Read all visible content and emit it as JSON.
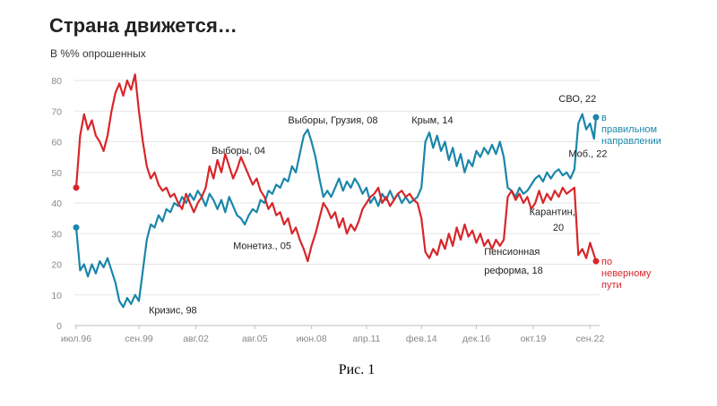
{
  "chart_data": {
    "type": "line",
    "title": "Страна движется…",
    "ylabel": "В %% опрошенных",
    "ylim": [
      0,
      80
    ],
    "yticks": [
      "0",
      "10",
      "20",
      "30",
      "40",
      "50",
      "60",
      "70",
      "80"
    ],
    "xlim": [
      1996.5,
      2023.0
    ],
    "xticks": [
      {
        "x": 1996.5,
        "label": "июл.96"
      },
      {
        "x": 1999.7,
        "label": "сен.99"
      },
      {
        "x": 2002.6,
        "label": "авг.02"
      },
      {
        "x": 2005.6,
        "label": "авг.05"
      },
      {
        "x": 2008.5,
        "label": "июн.08"
      },
      {
        "x": 2011.3,
        "label": "апр.11"
      },
      {
        "x": 2014.1,
        "label": "фев.14"
      },
      {
        "x": 2016.9,
        "label": "дек.16"
      },
      {
        "x": 2019.8,
        "label": "окт.19"
      },
      {
        "x": 2022.7,
        "label": "сен.22"
      }
    ],
    "series": [
      {
        "name": "в правильном направлении",
        "color": "#1a86aa",
        "points": [
          [
            1996.5,
            32
          ],
          [
            1996.7,
            18
          ],
          [
            1996.9,
            20
          ],
          [
            1997.1,
            16
          ],
          [
            1997.3,
            20
          ],
          [
            1997.5,
            17
          ],
          [
            1997.7,
            21
          ],
          [
            1997.9,
            19
          ],
          [
            1998.1,
            22
          ],
          [
            1998.3,
            18
          ],
          [
            1998.5,
            14
          ],
          [
            1998.7,
            8
          ],
          [
            1998.9,
            6
          ],
          [
            1999.1,
            9
          ],
          [
            1999.3,
            7
          ],
          [
            1999.5,
            10
          ],
          [
            1999.7,
            8
          ],
          [
            1999.9,
            18
          ],
          [
            2000.1,
            28
          ],
          [
            2000.3,
            33
          ],
          [
            2000.5,
            32
          ],
          [
            2000.7,
            36
          ],
          [
            2000.9,
            34
          ],
          [
            2001.1,
            38
          ],
          [
            2001.3,
            37
          ],
          [
            2001.5,
            40
          ],
          [
            2001.7,
            39
          ],
          [
            2001.9,
            42
          ],
          [
            2002.1,
            40
          ],
          [
            2002.3,
            43
          ],
          [
            2002.5,
            41
          ],
          [
            2002.7,
            44
          ],
          [
            2002.9,
            42
          ],
          [
            2003.1,
            39
          ],
          [
            2003.3,
            43
          ],
          [
            2003.5,
            41
          ],
          [
            2003.7,
            38
          ],
          [
            2003.9,
            41
          ],
          [
            2004.1,
            37
          ],
          [
            2004.3,
            42
          ],
          [
            2004.5,
            39
          ],
          [
            2004.7,
            36
          ],
          [
            2004.9,
            35
          ],
          [
            2005.1,
            33
          ],
          [
            2005.3,
            36
          ],
          [
            2005.5,
            38
          ],
          [
            2005.7,
            37
          ],
          [
            2005.9,
            41
          ],
          [
            2006.1,
            40
          ],
          [
            2006.3,
            44
          ],
          [
            2006.5,
            43
          ],
          [
            2006.7,
            46
          ],
          [
            2006.9,
            45
          ],
          [
            2007.1,
            48
          ],
          [
            2007.3,
            47
          ],
          [
            2007.5,
            52
          ],
          [
            2007.7,
            50
          ],
          [
            2007.9,
            56
          ],
          [
            2008.1,
            62
          ],
          [
            2008.3,
            64
          ],
          [
            2008.5,
            60
          ],
          [
            2008.7,
            55
          ],
          [
            2008.9,
            48
          ],
          [
            2009.1,
            42
          ],
          [
            2009.3,
            44
          ],
          [
            2009.5,
            42
          ],
          [
            2009.7,
            45
          ],
          [
            2009.9,
            48
          ],
          [
            2010.1,
            44
          ],
          [
            2010.3,
            47
          ],
          [
            2010.5,
            45
          ],
          [
            2010.7,
            48
          ],
          [
            2010.9,
            46
          ],
          [
            2011.1,
            43
          ],
          [
            2011.3,
            45
          ],
          [
            2011.5,
            40
          ],
          [
            2011.7,
            42
          ],
          [
            2011.9,
            39
          ],
          [
            2012.1,
            43
          ],
          [
            2012.3,
            41
          ],
          [
            2012.5,
            44
          ],
          [
            2012.7,
            41
          ],
          [
            2012.9,
            43
          ],
          [
            2013.1,
            40
          ],
          [
            2013.3,
            42
          ],
          [
            2013.5,
            40
          ],
          [
            2013.7,
            41
          ],
          [
            2013.9,
            42
          ],
          [
            2014.1,
            45
          ],
          [
            2014.3,
            60
          ],
          [
            2014.5,
            63
          ],
          [
            2014.7,
            58
          ],
          [
            2014.9,
            62
          ],
          [
            2015.1,
            57
          ],
          [
            2015.3,
            60
          ],
          [
            2015.5,
            54
          ],
          [
            2015.7,
            58
          ],
          [
            2015.9,
            52
          ],
          [
            2016.1,
            56
          ],
          [
            2016.3,
            50
          ],
          [
            2016.5,
            54
          ],
          [
            2016.7,
            52
          ],
          [
            2016.9,
            57
          ],
          [
            2017.1,
            55
          ],
          [
            2017.3,
            58
          ],
          [
            2017.5,
            56
          ],
          [
            2017.7,
            59
          ],
          [
            2017.9,
            56
          ],
          [
            2018.1,
            60
          ],
          [
            2018.3,
            55
          ],
          [
            2018.5,
            45
          ],
          [
            2018.7,
            44
          ],
          [
            2018.9,
            42
          ],
          [
            2019.1,
            45
          ],
          [
            2019.3,
            43
          ],
          [
            2019.5,
            44
          ],
          [
            2019.7,
            46
          ],
          [
            2019.9,
            48
          ],
          [
            2020.1,
            49
          ],
          [
            2020.3,
            47
          ],
          [
            2020.5,
            50
          ],
          [
            2020.7,
            48
          ],
          [
            2020.9,
            50
          ],
          [
            2021.1,
            51
          ],
          [
            2021.3,
            49
          ],
          [
            2021.5,
            50
          ],
          [
            2021.7,
            48
          ],
          [
            2021.9,
            51
          ],
          [
            2022.1,
            66
          ],
          [
            2022.3,
            69
          ],
          [
            2022.5,
            64
          ],
          [
            2022.7,
            66
          ],
          [
            2022.9,
            61
          ],
          [
            2023.0,
            68
          ]
        ]
      },
      {
        "name": "по неверному пути",
        "color": "#d8262a",
        "points": [
          [
            1996.5,
            45
          ],
          [
            1996.7,
            62
          ],
          [
            1996.9,
            69
          ],
          [
            1997.1,
            64
          ],
          [
            1997.3,
            67
          ],
          [
            1997.5,
            62
          ],
          [
            1997.7,
            60
          ],
          [
            1997.9,
            57
          ],
          [
            1998.1,
            62
          ],
          [
            1998.3,
            70
          ],
          [
            1998.5,
            76
          ],
          [
            1998.7,
            79
          ],
          [
            1998.9,
            75
          ],
          [
            1999.1,
            80
          ],
          [
            1999.3,
            77
          ],
          [
            1999.5,
            82
          ],
          [
            1999.7,
            70
          ],
          [
            1999.9,
            60
          ],
          [
            2000.1,
            52
          ],
          [
            2000.3,
            48
          ],
          [
            2000.5,
            50
          ],
          [
            2000.7,
            46
          ],
          [
            2000.9,
            44
          ],
          [
            2001.1,
            45
          ],
          [
            2001.3,
            42
          ],
          [
            2001.5,
            43
          ],
          [
            2001.7,
            40
          ],
          [
            2001.9,
            38
          ],
          [
            2002.1,
            43
          ],
          [
            2002.3,
            40
          ],
          [
            2002.5,
            37
          ],
          [
            2002.7,
            40
          ],
          [
            2002.9,
            42
          ],
          [
            2003.1,
            45
          ],
          [
            2003.3,
            52
          ],
          [
            2003.5,
            48
          ],
          [
            2003.7,
            54
          ],
          [
            2003.9,
            50
          ],
          [
            2004.1,
            56
          ],
          [
            2004.3,
            52
          ],
          [
            2004.5,
            48
          ],
          [
            2004.7,
            51
          ],
          [
            2004.9,
            55
          ],
          [
            2005.1,
            52
          ],
          [
            2005.3,
            49
          ],
          [
            2005.5,
            46
          ],
          [
            2005.7,
            48
          ],
          [
            2005.9,
            44
          ],
          [
            2006.1,
            42
          ],
          [
            2006.3,
            38
          ],
          [
            2006.5,
            40
          ],
          [
            2006.7,
            36
          ],
          [
            2006.9,
            37
          ],
          [
            2007.1,
            33
          ],
          [
            2007.3,
            35
          ],
          [
            2007.5,
            30
          ],
          [
            2007.7,
            32
          ],
          [
            2007.9,
            28
          ],
          [
            2008.1,
            25
          ],
          [
            2008.3,
            21
          ],
          [
            2008.5,
            26
          ],
          [
            2008.7,
            30
          ],
          [
            2008.9,
            35
          ],
          [
            2009.1,
            40
          ],
          [
            2009.3,
            38
          ],
          [
            2009.5,
            35
          ],
          [
            2009.7,
            37
          ],
          [
            2009.9,
            32
          ],
          [
            2010.1,
            35
          ],
          [
            2010.3,
            30
          ],
          [
            2010.5,
            33
          ],
          [
            2010.7,
            31
          ],
          [
            2010.9,
            34
          ],
          [
            2011.1,
            38
          ],
          [
            2011.3,
            40
          ],
          [
            2011.5,
            42
          ],
          [
            2011.7,
            43
          ],
          [
            2011.9,
            45
          ],
          [
            2012.1,
            40
          ],
          [
            2012.3,
            42
          ],
          [
            2012.5,
            39
          ],
          [
            2012.7,
            41
          ],
          [
            2012.9,
            43
          ],
          [
            2013.1,
            44
          ],
          [
            2013.3,
            42
          ],
          [
            2013.5,
            43
          ],
          [
            2013.7,
            41
          ],
          [
            2013.9,
            40
          ],
          [
            2014.1,
            35
          ],
          [
            2014.3,
            24
          ],
          [
            2014.5,
            22
          ],
          [
            2014.7,
            25
          ],
          [
            2014.9,
            23
          ],
          [
            2015.1,
            28
          ],
          [
            2015.3,
            25
          ],
          [
            2015.5,
            30
          ],
          [
            2015.7,
            26
          ],
          [
            2015.9,
            32
          ],
          [
            2016.1,
            28
          ],
          [
            2016.3,
            33
          ],
          [
            2016.5,
            29
          ],
          [
            2016.7,
            31
          ],
          [
            2016.9,
            27
          ],
          [
            2017.1,
            30
          ],
          [
            2017.3,
            26
          ],
          [
            2017.5,
            28
          ],
          [
            2017.7,
            25
          ],
          [
            2017.9,
            28
          ],
          [
            2018.1,
            26
          ],
          [
            2018.3,
            28
          ],
          [
            2018.5,
            42
          ],
          [
            2018.7,
            44
          ],
          [
            2018.9,
            41
          ],
          [
            2019.1,
            43
          ],
          [
            2019.3,
            40
          ],
          [
            2019.5,
            42
          ],
          [
            2019.7,
            38
          ],
          [
            2019.9,
            40
          ],
          [
            2020.1,
            44
          ],
          [
            2020.3,
            40
          ],
          [
            2020.5,
            43
          ],
          [
            2020.7,
            41
          ],
          [
            2020.9,
            44
          ],
          [
            2021.1,
            42
          ],
          [
            2021.3,
            45
          ],
          [
            2021.5,
            43
          ],
          [
            2021.7,
            44
          ],
          [
            2021.9,
            45
          ],
          [
            2022.1,
            23
          ],
          [
            2022.3,
            25
          ],
          [
            2022.5,
            22
          ],
          [
            2022.7,
            27
          ],
          [
            2022.9,
            23
          ],
          [
            2023.0,
            21
          ]
        ]
      }
    ],
    "annotations": [
      {
        "text": "Кризис, 98",
        "x": 2000.2,
        "y": 4
      },
      {
        "text": "Выборы, 04",
        "x": 2003.4,
        "y": 56
      },
      {
        "text": "Монетиз., 05",
        "x": 2004.5,
        "y": 25
      },
      {
        "text": "Выборы, Грузия, 08",
        "x": 2007.3,
        "y": 66
      },
      {
        "text": "Крым, 14",
        "x": 2013.6,
        "y": 66
      },
      {
        "text": "Пенсионная",
        "x": 2017.3,
        "y": 23
      },
      {
        "text": "реформа, 18",
        "x": 2017.3,
        "y": 17
      },
      {
        "text": "Карантин,",
        "x": 2019.6,
        "y": 36
      },
      {
        "text": "20",
        "x": 2020.8,
        "y": 31
      },
      {
        "text": "СВО, 22",
        "x": 2021.1,
        "y": 73
      },
      {
        "text": "Моб., 22",
        "x": 2021.6,
        "y": 55
      }
    ],
    "legend": {
      "placement": "right",
      "entries": [
        {
          "lines": [
            "в",
            "правильном",
            "направлении"
          ],
          "color": "#1a86aa"
        },
        {
          "lines": [
            "по",
            "неверному",
            "пути"
          ],
          "color": "#d8262a"
        }
      ]
    }
  },
  "caption": "Рис. 1"
}
